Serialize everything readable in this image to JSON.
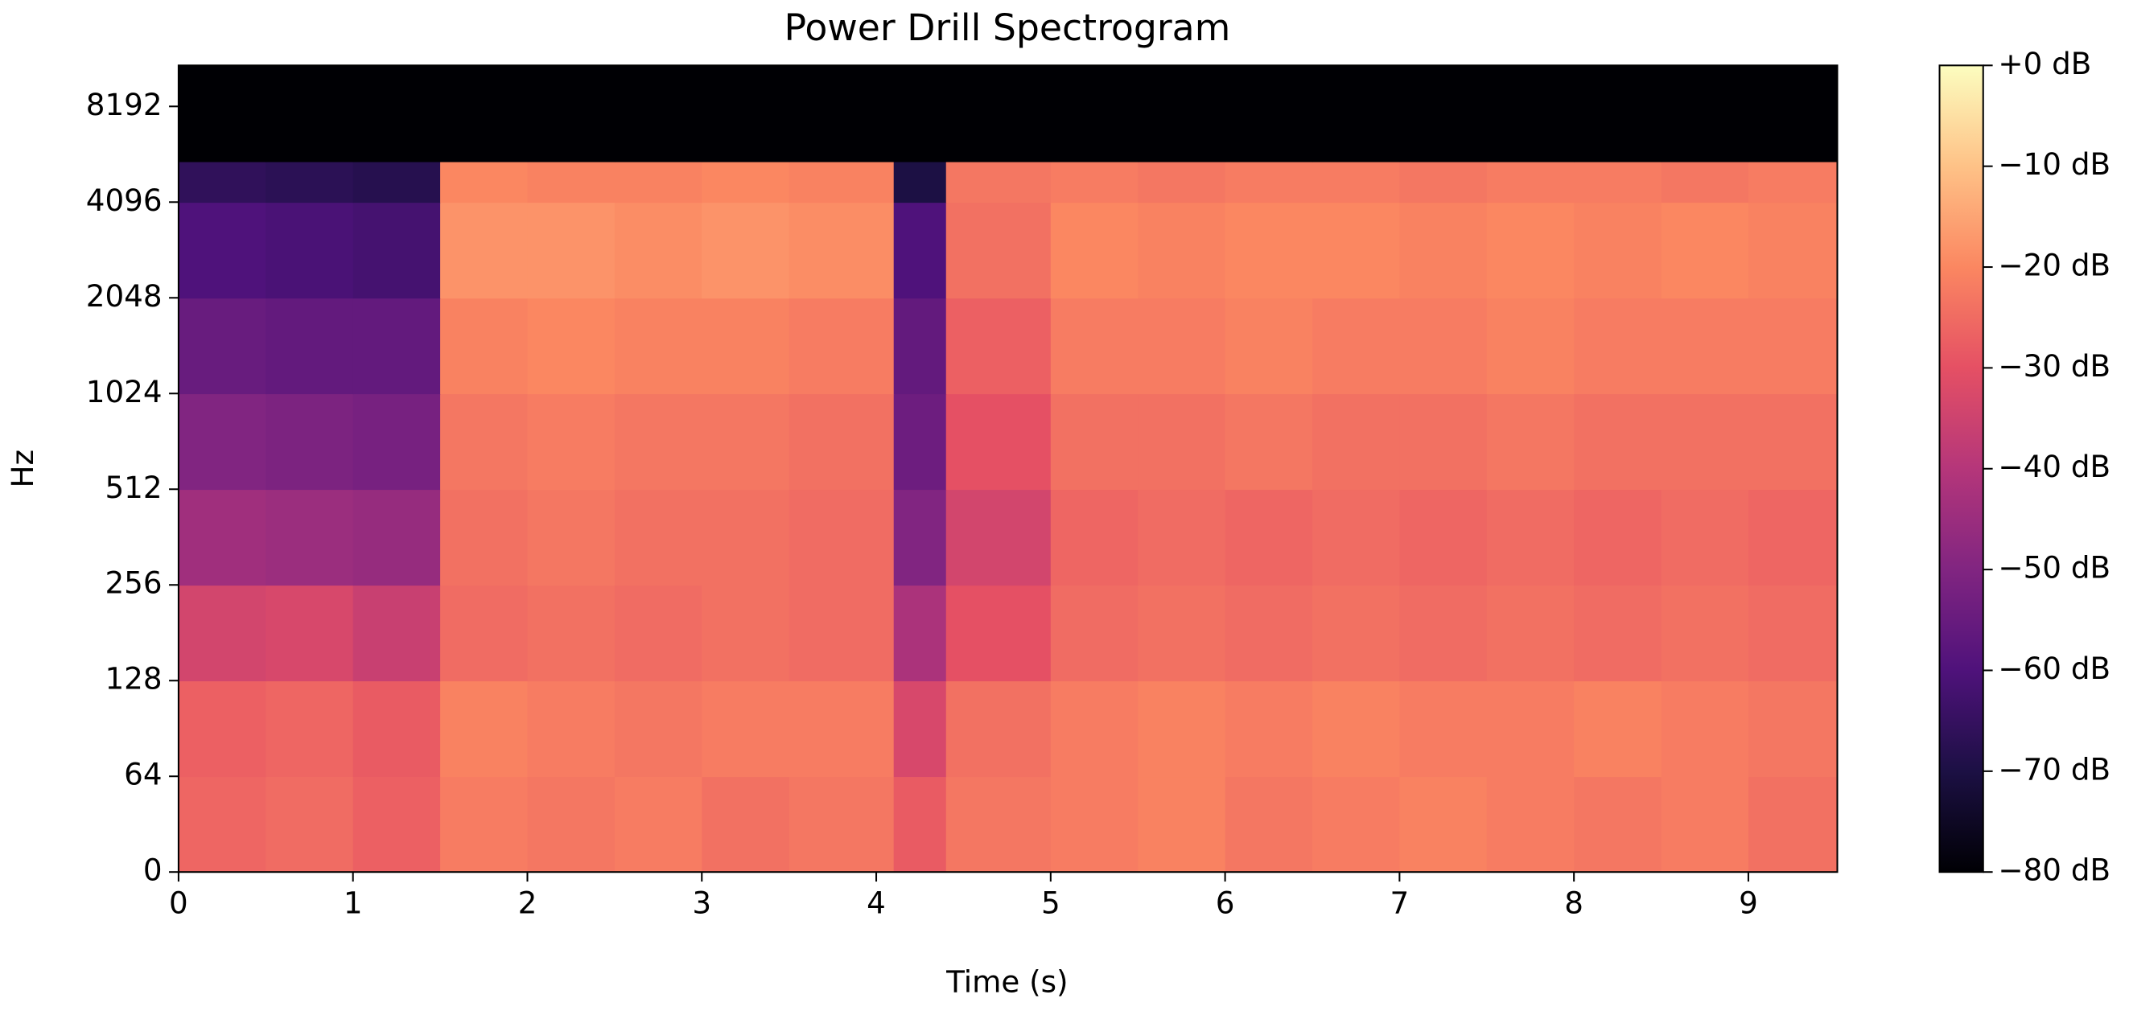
{
  "chart_data": {
    "type": "spectrogram",
    "title": "Power Drill Spectrogram",
    "x_label": "Time (s)",
    "y_label": "Hz",
    "y_scale": "log2-linear-below-64",
    "xlim": [
      0,
      9.51
    ],
    "xticks": [
      0,
      1,
      2,
      3,
      4,
      5,
      6,
      7,
      8,
      9
    ],
    "ylim": [
      0,
      11025
    ],
    "yticks": [
      0,
      64,
      128,
      256,
      512,
      1024,
      2048,
      4096,
      8192
    ],
    "time_edges": [
      0,
      0.5,
      1.0,
      1.5,
      2.0,
      2.5,
      3.0,
      3.5,
      4.1,
      4.4,
      5.0,
      5.5,
      6.0,
      6.5,
      7.0,
      7.5,
      8.0,
      8.5,
      9.0,
      9.51
    ],
    "freq_edges": [
      0,
      64,
      128,
      256,
      512,
      1024,
      2048,
      4096,
      5500,
      11025
    ],
    "z": [
      [
        -26,
        -25,
        -27,
        -22,
        -23,
        -22,
        -24,
        -23,
        -28,
        -23,
        -22,
        -21,
        -23,
        -22,
        -21,
        -22,
        -23,
        -22,
        -24
      ],
      [
        -27,
        -26,
        -28,
        -21,
        -22,
        -23,
        -22,
        -22,
        -33,
        -24,
        -22,
        -21,
        -22,
        -21,
        -22,
        -22,
        -21,
        -22,
        -23
      ],
      [
        -34,
        -33,
        -36,
        -25,
        -24,
        -25,
        -24,
        -25,
        -42,
        -30,
        -25,
        -24,
        -25,
        -24,
        -25,
        -24,
        -25,
        -24,
        -25
      ],
      [
        -44,
        -45,
        -46,
        -24,
        -23,
        -24,
        -24,
        -25,
        -50,
        -34,
        -26,
        -25,
        -26,
        -25,
        -26,
        -25,
        -26,
        -25,
        -26
      ],
      [
        -50,
        -51,
        -52,
        -23,
        -22,
        -23,
        -23,
        -24,
        -54,
        -30,
        -24,
        -24,
        -23,
        -24,
        -24,
        -23,
        -24,
        -24,
        -24
      ],
      [
        -55,
        -56,
        -56,
        -21,
        -20,
        -21,
        -21,
        -22,
        -56,
        -27,
        -22,
        -22,
        -21,
        -22,
        -22,
        -21,
        -22,
        -22,
        -22
      ],
      [
        -60,
        -61,
        -62,
        -18,
        -18,
        -19,
        -18,
        -19,
        -60,
        -24,
        -20,
        -21,
        -20,
        -20,
        -21,
        -20,
        -21,
        -20,
        -21
      ],
      [
        -66,
        -67,
        -68,
        -20,
        -21,
        -21,
        -20,
        -21,
        -70,
        -23,
        -22,
        -23,
        -22,
        -22,
        -23,
        -22,
        -22,
        -23,
        -22
      ],
      [
        -80,
        -80,
        -80,
        -80,
        -80,
        -80,
        -80,
        -80,
        -80,
        -80,
        -80,
        -80,
        -80,
        -80,
        -80,
        -80,
        -80,
        -80,
        -80
      ]
    ],
    "zlim": [
      -80,
      0
    ],
    "colorscale": [
      "#000004",
      "#1c1044",
      "#4f127b",
      "#812581",
      "#b5367a",
      "#e55064",
      "#fb8761",
      "#fec287",
      "#fcfdbf"
    ],
    "colorbar_ticks": [
      {
        "value": 0,
        "label": "+0 dB"
      },
      {
        "value": -10,
        "label": "−10 dB"
      },
      {
        "value": -20,
        "label": "−20 dB"
      },
      {
        "value": -30,
        "label": "−30 dB"
      },
      {
        "value": -40,
        "label": "−40 dB"
      },
      {
        "value": -50,
        "label": "−50 dB"
      },
      {
        "value": -60,
        "label": "−60 dB"
      },
      {
        "value": -70,
        "label": "−70 dB"
      },
      {
        "value": -80,
        "label": "−80 dB"
      }
    ]
  }
}
